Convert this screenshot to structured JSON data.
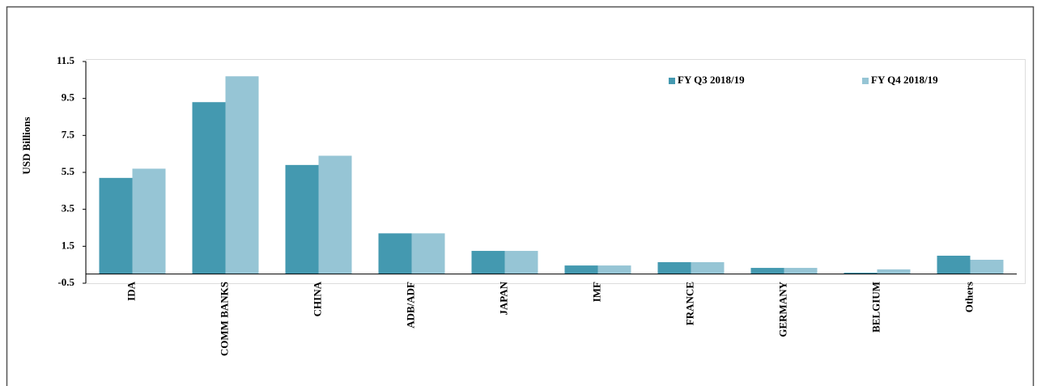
{
  "chart_data": {
    "type": "bar",
    "y_label": "USD Billions",
    "categories": [
      "IDA",
      "COMM BANKS",
      "CHINA",
      "ADB/ADF",
      "JAPAN",
      "IMF",
      "FRANCE",
      "GERMANY",
      "BELGIUM",
      "Others"
    ],
    "series": [
      {
        "name": "FY Q3 2018/19",
        "color": "#4499b0",
        "values": [
          5.2,
          9.3,
          5.9,
          2.2,
          1.25,
          0.46,
          0.64,
          0.33,
          0.07,
          0.99
        ]
      },
      {
        "name": "FY Q4 2018/19",
        "color": "#96c5d5",
        "values": [
          5.7,
          10.7,
          6.4,
          2.2,
          1.25,
          0.46,
          0.64,
          0.33,
          0.25,
          0.77
        ]
      }
    ],
    "ylim": [
      -0.5,
      11.5
    ],
    "yticks": [
      -0.5,
      1.5,
      3.5,
      5.5,
      7.5,
      9.5,
      11.5
    ],
    "legend": "top-right"
  }
}
